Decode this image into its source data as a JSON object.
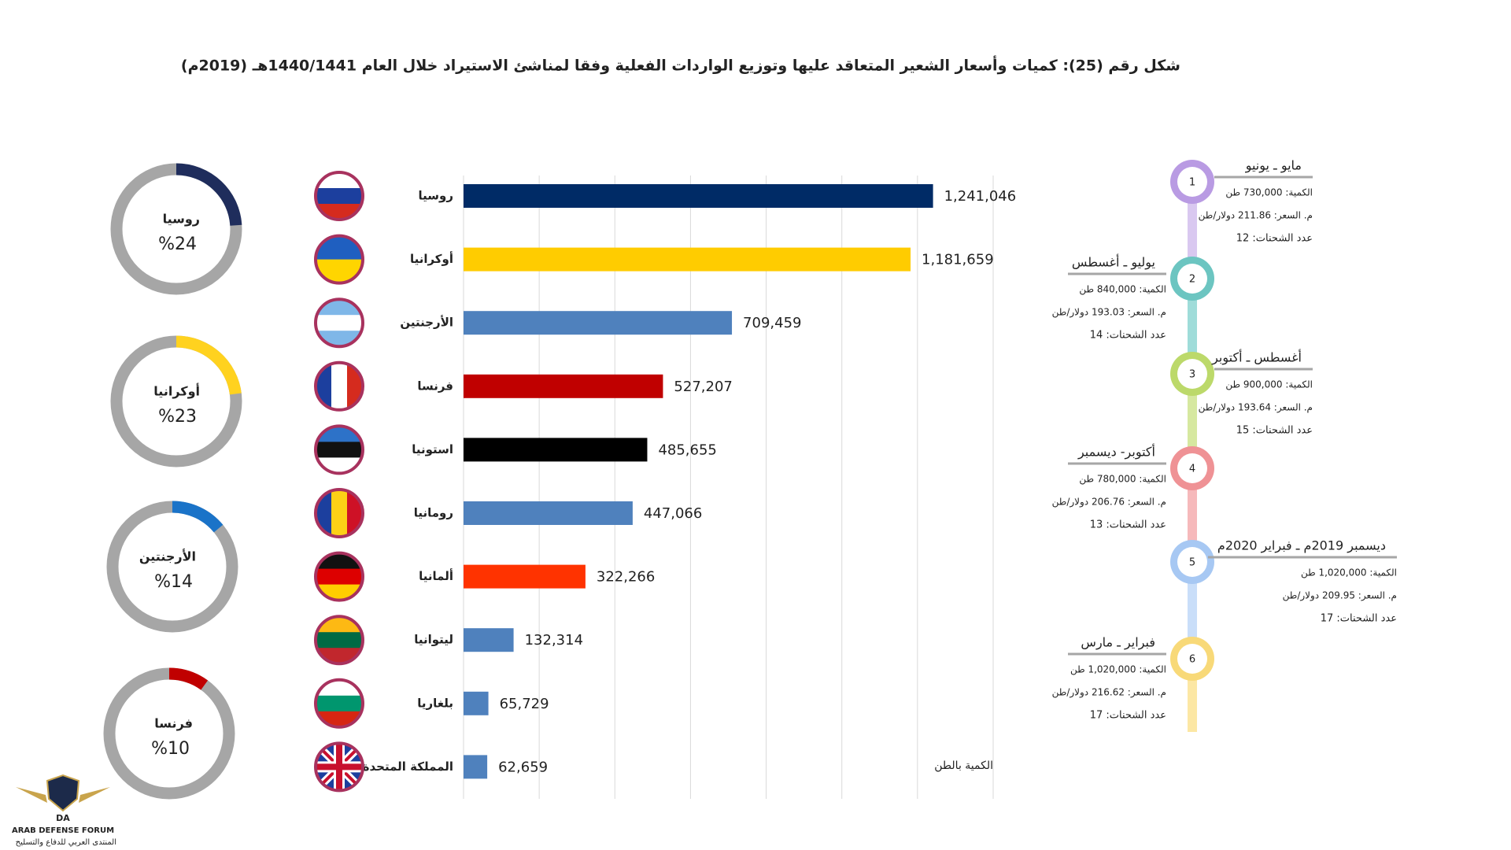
{
  "title": "شكل رقم (25): كميات وأسعار الشعير المتعاقد عليها وتوزيع الواردات الفعلية وفقا لمناشئ الاستيراد خلال العام 1440/1441هـ (2019م)",
  "chart_data": [
    {
      "type": "hbar",
      "categories": [
        "روسيا",
        "أوكرانيا",
        "الأرجنتين",
        "فرنسا",
        "استونيا",
        "رومانيا",
        "ألمانيا",
        "ليتوانيا",
        "بلغاريا",
        "المملكة المتحدة"
      ],
      "values": [
        1241046,
        1181659,
        709459,
        527207,
        485655,
        447066,
        322266,
        132314,
        65729,
        62659
      ],
      "value_labels": [
        "1,241,046",
        "1,181,659",
        "709,459",
        "527,207",
        "485,655",
        "447,066",
        "322,266",
        "132,314",
        "65,729",
        "62,659"
      ],
      "colors": [
        "#002b66",
        "#ffcc00",
        "#4f81bd",
        "#c00000",
        "#000000",
        "#4f81bd",
        "#ff3300",
        "#4f81bd",
        "#4f81bd",
        "#4f81bd"
      ],
      "xlim": [
        0,
        1400000
      ],
      "xticks": [
        0,
        200000,
        400000,
        600000,
        800000,
        1000000,
        1200000,
        1400000
      ],
      "xlabel": "الكمية بالطن",
      "grid": true
    },
    {
      "type": "donut",
      "title": "روسيا",
      "values": [
        24
      ],
      "value_labels": [
        "%24"
      ],
      "color": "#1f2d5c"
    },
    {
      "type": "donut",
      "title": "أوكرانيا",
      "values": [
        23
      ],
      "value_labels": [
        "%23"
      ],
      "color": "#ffd21f"
    },
    {
      "type": "donut",
      "title": "الأرجنتين",
      "values": [
        14
      ],
      "value_labels": [
        "%14"
      ],
      "color": "#1a73c8"
    },
    {
      "type": "donut",
      "title": "فرنسا",
      "values": [
        10
      ],
      "value_labels": [
        "%10"
      ],
      "color": "#c00000"
    }
  ],
  "timeline": [
    {
      "number": "1",
      "period": "مايو ـ يونيو",
      "quantity": "الكمية: 730,000 طن",
      "price": "م. السعر: 211.86 دولار/طن",
      "shipments": "عدد الشحنات: 12"
    },
    {
      "number": "2",
      "period": "يوليو ـ أغسطس",
      "quantity": "الكمية: 840,000 طن",
      "price": "م. السعر: 193.03 دولار/طن",
      "shipments": "عدد الشحنات: 14"
    },
    {
      "number": "3",
      "period": "أغسطس ـ أكتوبر",
      "quantity": "الكمية: 900,000 طن",
      "price": "م. السعر: 193.64 دولار/طن",
      "shipments": "عدد الشحنات: 15"
    },
    {
      "number": "4",
      "period": "أكتوبر- ديسمبر",
      "quantity": "الكمية: 780,000 طن",
      "price": "م. السعر: 206.76 دولار/طن",
      "shipments": "عدد الشحنات: 13"
    },
    {
      "number": "5",
      "period": "ديسمبر 2019م ـ فبراير 2020م",
      "quantity": "الكمية: 1,020,000 طن",
      "price": "م. السعر: 209.95 دولار/طن",
      "shipments": "عدد الشحنات: 17"
    },
    {
      "number": "6",
      "period": "فبراير ـ مارس",
      "quantity": "الكمية: 1,020,000 طن",
      "price": "م. السعر: 216.62 دولار/طن",
      "shipments": "عدد الشحنات: 17"
    }
  ],
  "logo": {
    "mark": "DA",
    "name": "ARAB DEFENSE FORUM",
    "subtitle": "المنتدى العربي للدفاع والتسليح"
  }
}
